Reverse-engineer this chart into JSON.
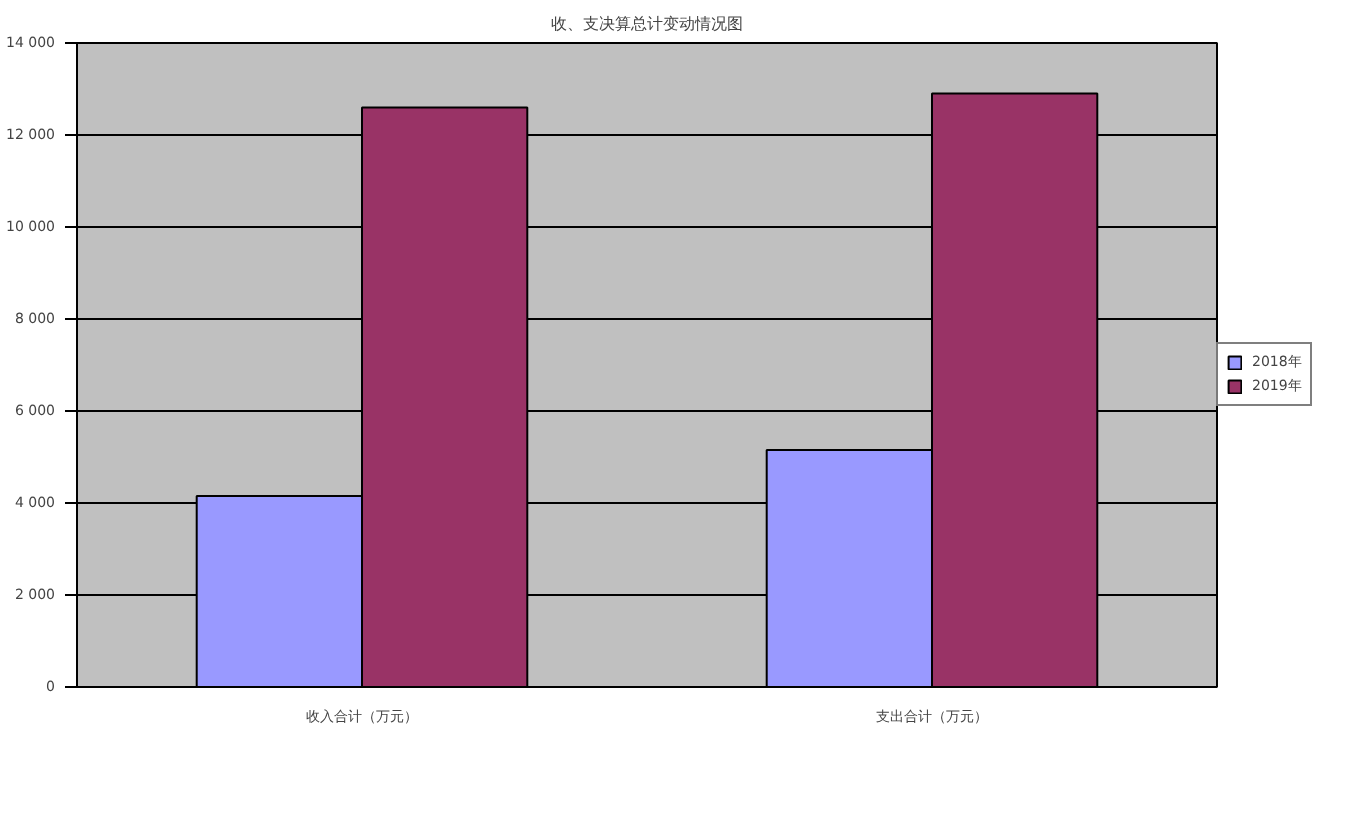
{
  "chart_data": {
    "type": "bar",
    "title": "收、支决算总计变动情况图",
    "categories": [
      "收入合计（万元）",
      "支出合计（万元）"
    ],
    "series": [
      {
        "name": "2018年",
        "color": "#9999ff",
        "values": [
          4150,
          5150
        ]
      },
      {
        "name": "2019年",
        "color": "#993366",
        "values": [
          12600,
          12900
        ]
      }
    ],
    "ylim": [
      0,
      14000
    ],
    "yticks": [
      0,
      {
        "value": 2000,
        "label": "2 000"
      },
      {
        "value": 4000,
        "label": "4 000"
      },
      {
        "value": 6000,
        "label": "6 000"
      },
      {
        "value": 8000,
        "label": "8 000"
      },
      {
        "value": 10000,
        "label": "10 000"
      },
      {
        "value": 12000,
        "label": "12 000"
      },
      {
        "value": 14000,
        "label": "14 000"
      }
    ],
    "grid": "y",
    "legend": "right"
  }
}
